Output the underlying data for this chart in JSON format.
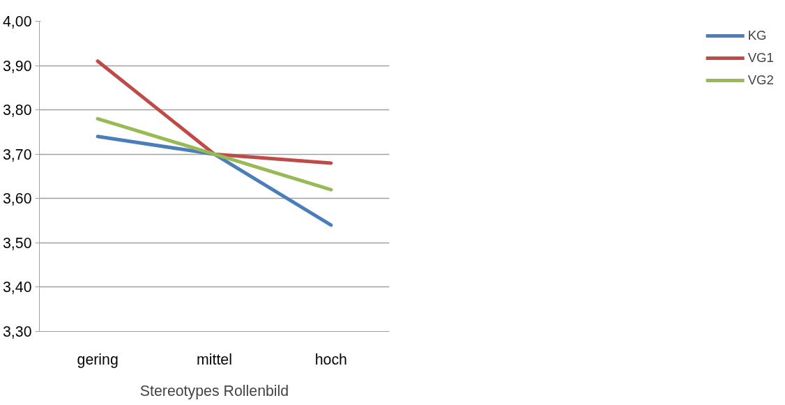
{
  "chart_data": {
    "type": "line",
    "xlabel": "Stereotypes Rollenbild",
    "categories": [
      "gering",
      "mittel",
      "hoch"
    ],
    "series": [
      {
        "name": "KG",
        "color": "#4a7ebb",
        "values": [
          3.74,
          3.7,
          3.54
        ]
      },
      {
        "name": "VG1",
        "color": "#be4b48",
        "values": [
          3.91,
          3.7,
          3.68
        ]
      },
      {
        "name": "VG2",
        "color": "#98b954",
        "values": [
          3.78,
          3.7,
          3.62
        ]
      }
    ],
    "ylim": [
      3.3,
      4.0
    ],
    "yticks": [
      {
        "value": 3.3,
        "label": "3,30"
      },
      {
        "value": 3.4,
        "label": "3,40"
      },
      {
        "value": 3.5,
        "label": "3,50"
      },
      {
        "value": 3.6,
        "label": "3,60"
      },
      {
        "value": 3.7,
        "label": "3,70"
      },
      {
        "value": 3.8,
        "label": "3,80"
      },
      {
        "value": 3.9,
        "label": "3,90"
      },
      {
        "value": 4.0,
        "label": "4,00"
      }
    ],
    "grid": "y",
    "legend": "right",
    "marker": "none",
    "line_style": "solid"
  }
}
